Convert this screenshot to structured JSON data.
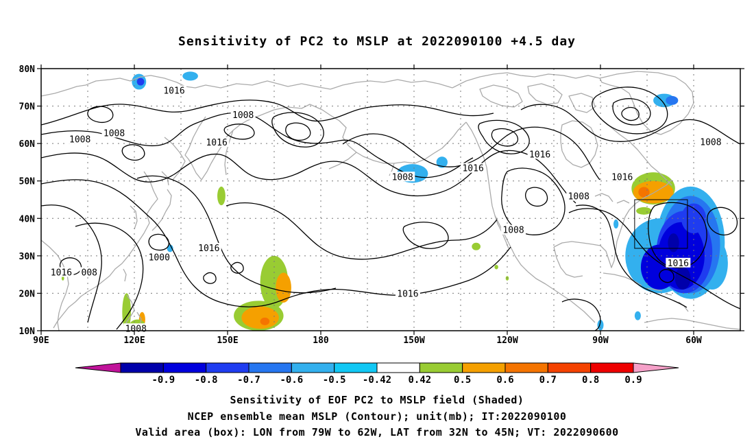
{
  "title": "Sensitivity of PC2 to MSLP at 2022090100 +4.5 day",
  "map": {
    "lat_ticks": [
      "80N",
      "70N",
      "60N",
      "50N",
      "40N",
      "30N",
      "20N",
      "10N"
    ],
    "lon_ticks": [
      "90E",
      "120E",
      "150E",
      "180",
      "150W",
      "120W",
      "90W",
      "60W"
    ],
    "grid": "dotted",
    "land_outline_color": "#aaaaaa",
    "contour_color": "#000000",
    "contour_labels": [
      {
        "text": "1016",
        "lon": 132.8,
        "lat": 74.0
      },
      {
        "text": "1008",
        "lon": 155.0,
        "lat": 67.5
      },
      {
        "text": "1008",
        "lon": 102.5,
        "lat": 61.0
      },
      {
        "text": "1008",
        "lon": 113.5,
        "lat": 62.7
      },
      {
        "text": "1016",
        "lon": 146.5,
        "lat": 60.2
      },
      {
        "text": "1016",
        "lon": 250.5,
        "lat": 57.0
      },
      {
        "text": "1008",
        "lon": 206.3,
        "lat": 51.0
      },
      {
        "text": "1016",
        "lon": 229.0,
        "lat": 53.3
      },
      {
        "text": "1016",
        "lon": 277.0,
        "lat": 51.0
      },
      {
        "text": "1008",
        "lon": 263.0,
        "lat": 45.8
      },
      {
        "text": "1008",
        "lon": 242.0,
        "lat": 36.8
      },
      {
        "text": "1000",
        "lon": 128.0,
        "lat": 29.5
      },
      {
        "text": "1016",
        "lon": 144.0,
        "lat": 32.0
      },
      {
        "text": "1016",
        "lon": 96.5,
        "lat": 25.5
      },
      {
        "text": "008",
        "lon": 105.5,
        "lat": 25.5
      },
      {
        "text": "1016",
        "lon": 208.0,
        "lat": 19.8
      },
      {
        "text": "1016",
        "lon": 295.0,
        "lat": 28.0
      },
      {
        "text": "1008",
        "lon": 120.5,
        "lat": 10.5
      },
      {
        "text": "1008",
        "lon": 305.5,
        "lat": 60.3
      }
    ],
    "valid_box": {
      "lon_min": 281,
      "lon_max": 298,
      "lat_min": 32,
      "lat_max": 45
    },
    "shading": [
      {
        "value": -0.5,
        "lon": 121.5,
        "lat": 76.5,
        "rx": 2.3,
        "ry": 2.1
      },
      {
        "value": -0.7,
        "lon": 122.0,
        "lat": 76.5,
        "rx": 1.2,
        "ry": 1.0
      },
      {
        "value": -0.5,
        "lon": 219.0,
        "lat": 55.0,
        "rx": 1.8,
        "ry": 1.5
      },
      {
        "value": -0.5,
        "lon": 209.5,
        "lat": 52.0,
        "rx": 5.0,
        "ry": 2.5
      },
      {
        "value": -0.5,
        "lon": 138.0,
        "lat": 78.0,
        "rx": 2.5,
        "ry": 1.2
      },
      {
        "value": 0.5,
        "lon": 148.0,
        "lat": 46.0,
        "rx": 1.3,
        "ry": 2.5
      },
      {
        "value": -0.5,
        "lon": 275.0,
        "lat": 38.5,
        "rx": 0.8,
        "ry": 1.2
      },
      {
        "value": 0.5,
        "lon": 230.0,
        "lat": 32.5,
        "rx": 1.4,
        "ry": 1.0
      },
      {
        "value": 0.5,
        "lon": 236.5,
        "lat": 27.0,
        "rx": 0.6,
        "ry": 0.6
      },
      {
        "value": 0.5,
        "lon": 117.5,
        "lat": 15.0,
        "rx": 1.4,
        "ry": 5.0
      },
      {
        "value": 0.6,
        "lon": 122.5,
        "lat": 13.0,
        "rx": 1.0,
        "ry": 2.0
      },
      {
        "value": 0.5,
        "lon": 121.0,
        "lat": 11.5,
        "rx": 2.5,
        "ry": 1.5
      },
      {
        "value": -0.5,
        "lon": 131.5,
        "lat": 32.0,
        "rx": 1.0,
        "ry": 1.0
      },
      {
        "value": 0.5,
        "lon": 97.0,
        "lat": 24.0,
        "rx": 0.4,
        "ry": 0.6
      },
      {
        "value": 0.5,
        "lon": 165.0,
        "lat": 23.0,
        "rx": 4.5,
        "ry": 7.0
      },
      {
        "value": 0.6,
        "lon": 168.0,
        "lat": 21.5,
        "rx": 2.5,
        "ry": 4.0
      },
      {
        "value": 0.5,
        "lon": 160.0,
        "lat": 14.0,
        "rx": 8.0,
        "ry": 4.0
      },
      {
        "value": 0.6,
        "lon": 160.5,
        "lat": 13.5,
        "rx": 6.0,
        "ry": 3.0
      },
      {
        "value": 0.7,
        "lon": 162.0,
        "lat": 12.5,
        "rx": 1.5,
        "ry": 1.0
      },
      {
        "value": 0.5,
        "lon": 240.0,
        "lat": 24.0,
        "rx": 0.5,
        "ry": 0.6
      },
      {
        "value": 0.5,
        "lon": 287.0,
        "lat": 48.0,
        "rx": 7.0,
        "ry": 4.3
      },
      {
        "value": 0.6,
        "lon": 287.0,
        "lat": 47.0,
        "rx": 6.5,
        "ry": 3.0
      },
      {
        "value": 0.7,
        "lon": 284.0,
        "lat": 47.0,
        "rx": 1.8,
        "ry": 1.4
      },
      {
        "value": 0.5,
        "lon": 284.0,
        "lat": 42.0,
        "rx": 2.5,
        "ry": 1.0
      },
      {
        "value": -0.5,
        "lon": 290.5,
        "lat": 71.5,
        "rx": 3.5,
        "ry": 1.8
      },
      {
        "value": -0.6,
        "lon": 293.0,
        "lat": 71.5,
        "rx": 2.0,
        "ry": 1.2
      },
      {
        "value": -0.5,
        "lon": 299.0,
        "lat": 33.5,
        "rx": 11.0,
        "ry": 15.0
      },
      {
        "value": -0.5,
        "lon": 289.0,
        "lat": 30.0,
        "rx": 11.0,
        "ry": 10.0
      },
      {
        "value": -0.5,
        "lon": 306.0,
        "lat": 28.0,
        "rx": 5.0,
        "ry": 7.0
      },
      {
        "value": -0.6,
        "lon": 299.0,
        "lat": 33.0,
        "rx": 9.5,
        "ry": 13.0
      },
      {
        "value": -0.7,
        "lon": 297.0,
        "lat": 31.0,
        "rx": 9.0,
        "ry": 11.0
      },
      {
        "value": -0.8,
        "lon": 296.0,
        "lat": 30.0,
        "rx": 7.5,
        "ry": 9.0
      },
      {
        "value": -0.8,
        "lon": 289.0,
        "lat": 27.0,
        "rx": 6.0,
        "ry": 6.0
      },
      {
        "value": -0.7,
        "lon": 300.0,
        "lat": 40.0,
        "rx": 4.0,
        "ry": 4.0
      },
      {
        "value": -0.9,
        "lon": 296.5,
        "lat": 24.0,
        "rx": 2.5,
        "ry": 3.0
      },
      {
        "value": -0.9,
        "lon": 293.5,
        "lat": 33.5,
        "rx": 1.8,
        "ry": 2.5
      },
      {
        "value": -0.5,
        "lon": 270.0,
        "lat": 11.5,
        "rx": 1.0,
        "ry": 1.4
      },
      {
        "value": -0.5,
        "lon": 282.0,
        "lat": 14.0,
        "rx": 1.0,
        "ry": 1.2
      }
    ]
  },
  "colorbar": {
    "labels": [
      "-0.9",
      "-0.8",
      "-0.7",
      "-0.6",
      "-0.5",
      "-0.42",
      "0.42",
      "0.5",
      "0.6",
      "0.7",
      "0.8",
      "0.9"
    ],
    "colors": [
      "#c0139a",
      "#0000aa",
      "#0000dd",
      "#1f3cf0",
      "#2676f0",
      "#33b0ee",
      "#12c8f5",
      "#ffffff",
      "#99cc33",
      "#f5a000",
      "#f57400",
      "#f54200",
      "#ee0000",
      "#f5a0c8"
    ]
  },
  "caption": {
    "line1": "Sensitivity of EOF PC2 to MSLP field (Shaded)",
    "line2": "NCEP ensemble mean MSLP (Contour); unit(mb); IT:2022090100",
    "line3": "Valid area (box): LON from 79W to 62W, LAT from 32N to 45N; VT: 2022090600"
  }
}
